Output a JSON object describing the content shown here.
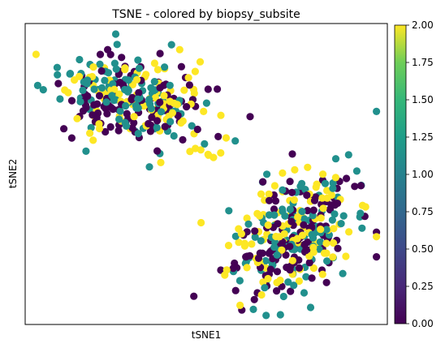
{
  "chart_data": {
    "type": "scatter",
    "title": "TSNE - colored by biopsy_subsite",
    "xlabel": "tSNE1",
    "ylabel": "tSNE2",
    "xlim": [
      0,
      100
    ],
    "ylim": [
      0,
      100
    ],
    "grid": false,
    "axis_ticks": false,
    "colorbar": {
      "colormap": "viridis",
      "range": [
        0,
        2
      ],
      "ticks": [
        "0.00",
        "0.25",
        "0.50",
        "0.75",
        "1.00",
        "1.25",
        "1.50",
        "1.75",
        "2.00"
      ]
    },
    "value_colors": {
      "0": "#440154",
      "1": "#21908d",
      "2": "#fde725"
    },
    "clusters": [
      {
        "center": [
          30,
          75
        ],
        "spread": [
          10,
          7
        ],
        "tilt": -0.35,
        "count": 300,
        "shares": [
          0.35,
          0.35,
          0.3
        ]
      },
      {
        "center": [
          75,
          30
        ],
        "spread": [
          7.5,
          12
        ],
        "tilt": -0.55,
        "count": 330,
        "shares": [
          0.38,
          0.3,
          0.32
        ]
      }
    ],
    "bridge_points": [
      {
        "x": 45.5,
        "y": 57.5,
        "value": 2
      },
      {
        "x": 47.0,
        "y": 58.5,
        "value": 2
      },
      {
        "x": 48.5,
        "y": 58.0,
        "value": 2
      },
      {
        "x": 50.5,
        "y": 56.5,
        "value": 2
      },
      {
        "x": 52.0,
        "y": 55.5,
        "value": 2
      },
      {
        "x": 49.5,
        "y": 60.0,
        "value": 1
      },
      {
        "x": 54.0,
        "y": 57.0,
        "value": 2
      },
      {
        "x": 55.5,
        "y": 62.0,
        "value": 2
      },
      {
        "x": 58.0,
        "y": 61.0,
        "value": 1
      },
      {
        "x": 46.0,
        "y": 66.0,
        "value": 1
      },
      {
        "x": 43.0,
        "y": 70.0,
        "value": 1
      },
      {
        "x": 41.0,
        "y": 73.5,
        "value": 1
      },
      {
        "x": 37.0,
        "y": 72.0,
        "value": 0
      },
      {
        "x": 25.0,
        "y": 96.5,
        "value": 1
      },
      {
        "x": 15.0,
        "y": 88.0,
        "value": 1
      },
      {
        "x": 5.0,
        "y": 78.0,
        "value": 1
      },
      {
        "x": 93.0,
        "y": 32.0,
        "value": 1
      },
      {
        "x": 85.0,
        "y": 47.0,
        "value": 1
      },
      {
        "x": 38.5,
        "y": 85.0,
        "value": 2
      },
      {
        "x": 63.0,
        "y": 5.0,
        "value": 1
      }
    ]
  }
}
